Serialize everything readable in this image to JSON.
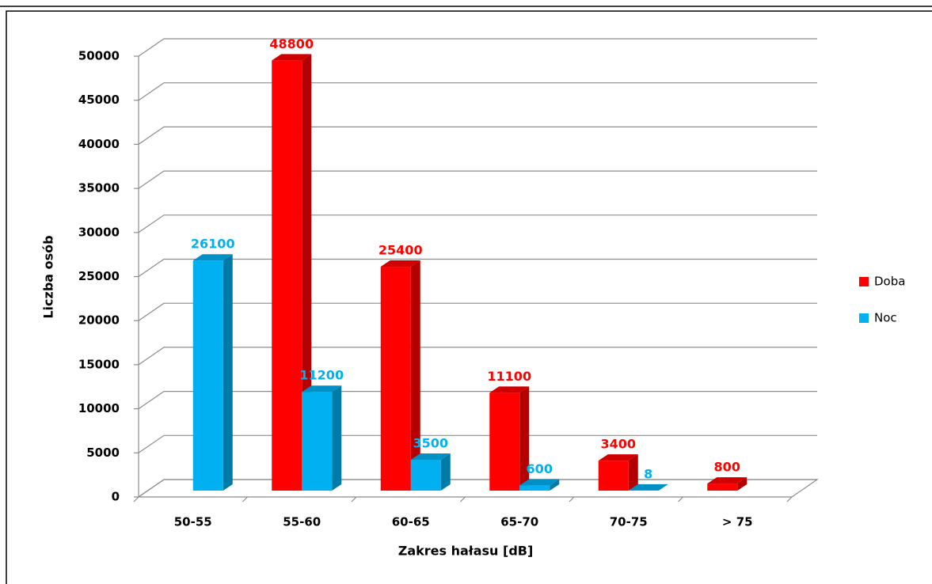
{
  "chart_data": {
    "type": "bar3d",
    "y_label": "Liczba osób",
    "x_label": "Zakres hałasu [dB]",
    "categories": [
      "50-55",
      "55-60",
      "60-65",
      "65-70",
      "70-75",
      "> 75"
    ],
    "series": [
      {
        "name": "Doba",
        "color": "#ff0000",
        "values": [
          null,
          48800,
          25400,
          11100,
          3400,
          800
        ]
      },
      {
        "name": "Noc",
        "color": "#00b0f0",
        "values": [
          26100,
          11200,
          3500,
          600,
          8,
          null
        ]
      }
    ],
    "ylim": [
      0,
      50000
    ],
    "yticks": [
      0,
      5000,
      10000,
      15000,
      20000,
      25000,
      30000,
      35000,
      40000,
      45000,
      50000
    ],
    "grid": true,
    "legend": "right"
  }
}
